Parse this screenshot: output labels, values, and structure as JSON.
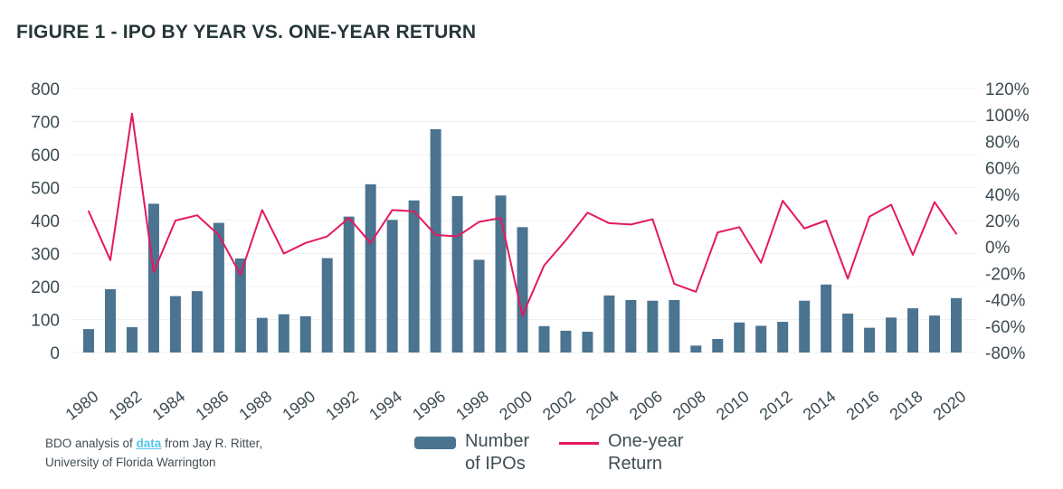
{
  "colors": {
    "bar": "#4a7490",
    "line": "#e4195e",
    "grid": "#efefec",
    "axis_text": "#3c4b52",
    "title_text": "#263739",
    "footer_text": "#404d54",
    "link": "#55c6e9"
  },
  "legend": {
    "items": [
      {
        "swatch": "bar-swatch",
        "line1": "Number",
        "line2": "of IPOs",
        "label": "Number of IPOs"
      },
      {
        "swatch": "line-swatch",
        "line1": "One-year",
        "line2": "Return",
        "label": "One-year Return"
      }
    ]
  },
  "footer": {
    "part1": "BDO analysis of ",
    "link_text": "data",
    "part2": " from Jay R. Ritter,",
    "line2": "University of Florida Warrington"
  },
  "chart_data": {
    "type": "bar",
    "title": "FIGURE 1 - IPO BY YEAR VS. ONE-YEAR RETURN",
    "categories": [
      1980,
      1981,
      1982,
      1983,
      1984,
      1985,
      1986,
      1987,
      1988,
      1989,
      1990,
      1991,
      1992,
      1993,
      1994,
      1995,
      1996,
      1997,
      1998,
      1999,
      2000,
      2001,
      2002,
      2003,
      2004,
      2005,
      2006,
      2007,
      2008,
      2009,
      2010,
      2011,
      2012,
      2013,
      2014,
      2015,
      2016,
      2017,
      2018,
      2019,
      2020
    ],
    "series": [
      {
        "name": "Number of IPOs",
        "type": "bar",
        "axis": "left",
        "values": [
          71,
          192,
          77,
          451,
          171,
          186,
          393,
          285,
          105,
          116,
          110,
          286,
          412,
          510,
          402,
          461,
          677,
          474,
          281,
          476,
          380,
          80,
          66,
          63,
          173,
          159,
          157,
          159,
          21,
          41,
          91,
          81,
          93,
          157,
          206,
          118,
          75,
          106,
          134,
          112,
          165
        ]
      },
      {
        "name": "One-year Return",
        "type": "line",
        "axis": "right",
        "unit": "%",
        "values": [
          27,
          -10,
          101,
          -19,
          20,
          24,
          9,
          -21,
          28,
          -5,
          3,
          8,
          22,
          3,
          28,
          27,
          9,
          8,
          19,
          22,
          -52,
          -14,
          5,
          26,
          18,
          17,
          21,
          -28,
          -34,
          11,
          15,
          -12,
          35,
          14,
          20,
          -24,
          23,
          32,
          -6,
          34,
          10
        ]
      }
    ],
    "left_axis": {
      "range": [
        0,
        800
      ],
      "ticks": [
        "0",
        "100",
        "200",
        "300",
        "400",
        "500",
        "600",
        "700",
        "800"
      ]
    },
    "right_axis": {
      "range": [
        -80,
        120
      ],
      "unit": "%",
      "ticks": [
        "120%",
        "100%",
        "80%",
        "60%",
        "40%",
        "20%",
        "0%",
        "-20%",
        "-40%",
        "-60%",
        "-80%"
      ]
    },
    "x_axis": {
      "label_every": 2,
      "tick_labels": [
        "1980",
        "1982",
        "1984",
        "1986",
        "1988",
        "1990",
        "1992",
        "1994",
        "1996",
        "1998",
        "2000",
        "2002",
        "2004",
        "2006",
        "2008",
        "2010",
        "2012",
        "2014",
        "2016",
        "2018",
        "2020"
      ]
    },
    "grid": "horizontal",
    "legend_position": "bottom"
  }
}
